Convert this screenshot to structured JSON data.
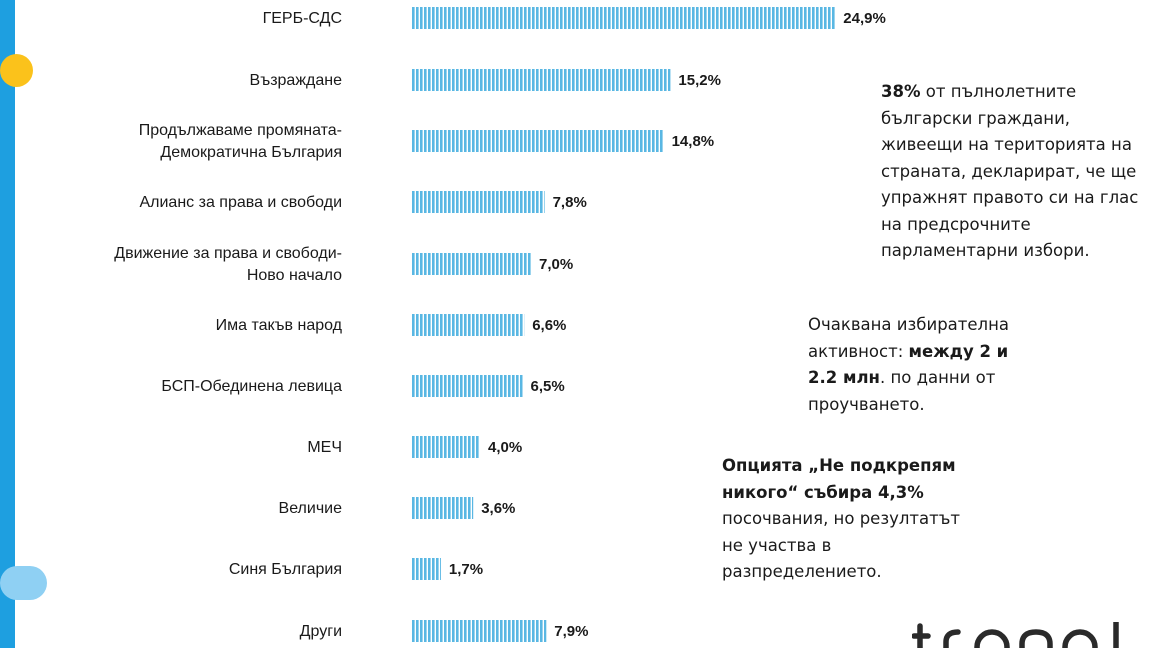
{
  "chart_data": {
    "type": "bar",
    "orientation": "horizontal",
    "categories": [
      [
        "ГЕРБ-СДС"
      ],
      [
        "Възраждане"
      ],
      [
        "Продължаваме промяната-",
        "Демократична България"
      ],
      [
        "Алианс за права и свободи"
      ],
      [
        "Движение за права и свободи-",
        "Ново начало"
      ],
      [
        "Има такъв народ"
      ],
      [
        "БСП-Обединена левица"
      ],
      [
        "МЕЧ"
      ],
      [
        "Величие"
      ],
      [
        "Синя България"
      ],
      [
        "Други"
      ]
    ],
    "values": [
      24.9,
      15.2,
      14.8,
      7.8,
      7.0,
      6.6,
      6.5,
      4.0,
      3.6,
      1.7,
      7.9
    ],
    "value_labels": [
      "24,9%",
      "15,2%",
      "14,8%",
      "7,8%",
      "7,0%",
      "6,6%",
      "6,5%",
      "4,0%",
      "3,6%",
      "1,7%",
      "7,9%"
    ],
    "bar_color": "#59b7e3",
    "bar_pattern": "vertical-stripes",
    "grid": false,
    "legend": false
  },
  "notes": {
    "n1_bold": "38%",
    "n1_rest": "от пълнолетните български граждани, живеещи на територията на страната, декларират, че ще упражнят правото си на глас на предсрочните парламентарни избори.",
    "n2_a": "Очаквана избирателна активност:",
    "n2_bold": "между 2 и 2.2 млн",
    "n2_b": ". по данни от проучването.",
    "n3_bold": "Опцията „Не подкрепям никого“ събира 4,3%",
    "n3_rest": "посочвания, но резултатът не участва в разпределението."
  },
  "colors": {
    "accent_strip": "#1e9fe0",
    "accent_dot": "#fbc21b",
    "accent_pill": "#8fd0f3"
  },
  "icons": {
    "logo": "trend-logo-partial"
  }
}
